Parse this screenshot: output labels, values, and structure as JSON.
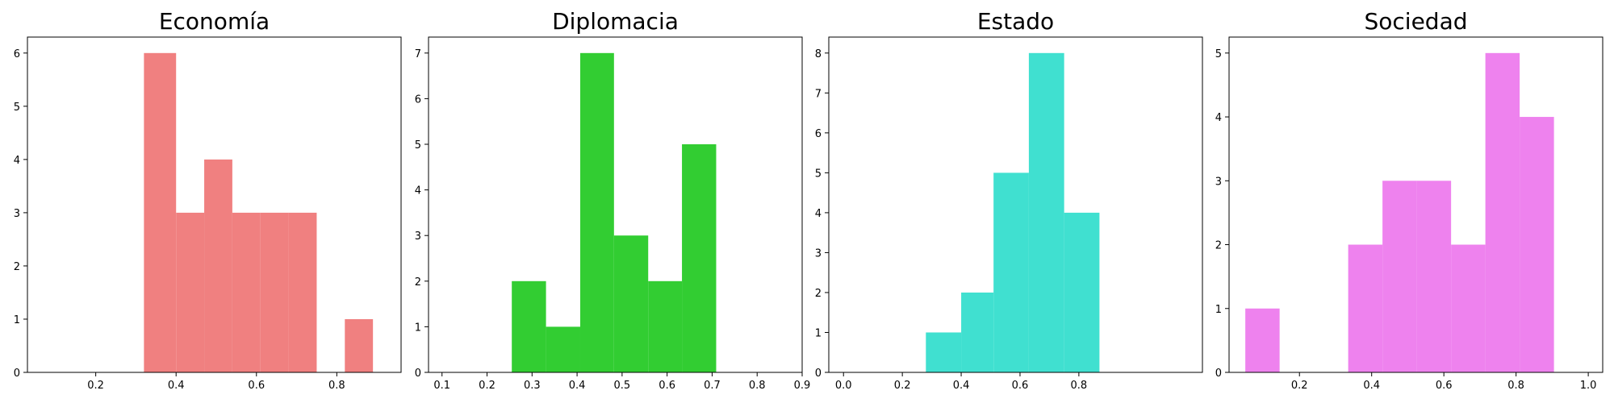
{
  "chart_data": [
    {
      "type": "bar",
      "title": "Economía",
      "color": "#F08080",
      "xlim": [
        0.03,
        0.96
      ],
      "ylim": [
        0,
        6.3
      ],
      "x_ticks": [
        0.2,
        0.4,
        0.6,
        0.8
      ],
      "x_tick_labels": [
        "0.2",
        "0.4",
        "0.6",
        "0.8"
      ],
      "y_ticks": [
        0,
        1,
        2,
        3,
        4,
        5,
        6
      ],
      "y_tick_labels": [
        "0",
        "1",
        "2",
        "3",
        "4",
        "5",
        "6"
      ],
      "bins": [
        [
          0.32,
          0.4
        ],
        [
          0.4,
          0.47
        ],
        [
          0.47,
          0.54
        ],
        [
          0.54,
          0.61
        ],
        [
          0.61,
          0.68
        ],
        [
          0.68,
          0.75
        ],
        [
          0.75,
          0.82
        ],
        [
          0.82,
          0.89
        ]
      ],
      "values": [
        6,
        3,
        4,
        3,
        3,
        3,
        0,
        1
      ]
    },
    {
      "type": "bar",
      "title": "Diplomacia",
      "color": "#32CD32",
      "xlim": [
        0.07,
        0.9
      ],
      "ylim": [
        0,
        7.35
      ],
      "x_ticks": [
        0.1,
        0.2,
        0.3,
        0.4,
        0.5,
        0.6,
        0.7,
        0.8,
        0.9
      ],
      "x_tick_labels": [
        "0.1",
        "0.2",
        "0.3",
        "0.4",
        "0.5",
        "0.6",
        "0.7",
        "0.8",
        "0.9"
      ],
      "y_ticks": [
        0,
        1,
        2,
        3,
        4,
        5,
        6,
        7
      ],
      "y_tick_labels": [
        "0",
        "1",
        "2",
        "3",
        "4",
        "5",
        "6",
        "7"
      ],
      "bins": [
        [
          0.255,
          0.331
        ],
        [
          0.331,
          0.407
        ],
        [
          0.407,
          0.482
        ],
        [
          0.482,
          0.558
        ],
        [
          0.558,
          0.633
        ],
        [
          0.633,
          0.709
        ]
      ],
      "values": [
        2,
        1,
        7,
        3,
        2,
        5
      ]
    },
    {
      "type": "bar",
      "title": "Estado",
      "color": "#40E0D0",
      "xlim": [
        -0.05,
        1.22
      ],
      "ylim": [
        0,
        8.4
      ],
      "x_ticks": [
        0.0,
        0.2,
        0.4,
        0.6,
        0.8
      ],
      "x_tick_labels": [
        "0.0",
        "0.2",
        "0.4",
        "0.6",
        "0.8"
      ],
      "y_ticks": [
        0,
        1,
        2,
        3,
        4,
        5,
        6,
        7,
        8
      ],
      "y_tick_labels": [
        "0",
        "1",
        "2",
        "3",
        "4",
        "5",
        "6",
        "7",
        "8"
      ],
      "bins": [
        [
          0.28,
          0.4
        ],
        [
          0.4,
          0.51
        ],
        [
          0.51,
          0.63
        ],
        [
          0.63,
          0.75
        ],
        [
          0.75,
          0.87
        ]
      ],
      "values": [
        1,
        2,
        5,
        8,
        4
      ]
    },
    {
      "type": "bar",
      "title": "Sociedad",
      "color": "#EE82EE",
      "xlim": [
        0.005,
        1.04
      ],
      "ylim": [
        0,
        5.25
      ],
      "x_ticks": [
        0.2,
        0.4,
        0.6,
        0.8,
        1.0
      ],
      "x_tick_labels": [
        "0.2",
        "0.4",
        "0.6",
        "0.8",
        "1.0"
      ],
      "y_ticks": [
        0,
        1,
        2,
        3,
        4,
        5
      ],
      "y_tick_labels": [
        "0",
        "1",
        "2",
        "3",
        "4",
        "5"
      ],
      "bins": [
        [
          0.05,
          0.145
        ],
        [
          0.145,
          0.24
        ],
        [
          0.24,
          0.335
        ],
        [
          0.335,
          0.43
        ],
        [
          0.43,
          0.525
        ],
        [
          0.525,
          0.62
        ],
        [
          0.62,
          0.715
        ],
        [
          0.715,
          0.81
        ],
        [
          0.81,
          0.905
        ]
      ],
      "values": [
        1,
        0,
        0,
        2,
        3,
        3,
        2,
        5,
        4
      ]
    }
  ]
}
